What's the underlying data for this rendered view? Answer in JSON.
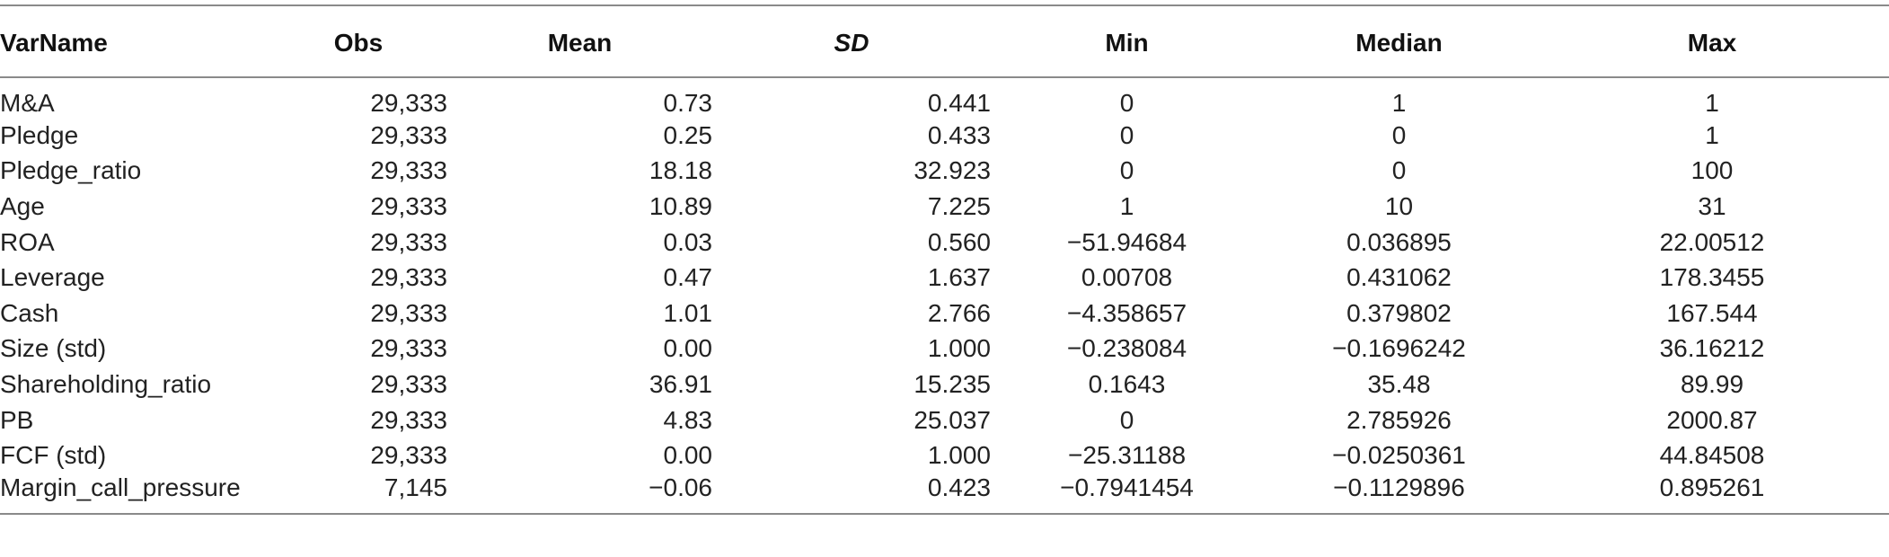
{
  "table": {
    "columns": [
      "VarName",
      "Obs",
      "Mean",
      "SD",
      "Min",
      "Median",
      "Max"
    ],
    "rows": [
      {
        "VarName": "M&A",
        "Obs": "29,333",
        "Mean": "0.73",
        "SD": "0.441",
        "Min": "0",
        "Median": "1",
        "Max": "1"
      },
      {
        "VarName": "Pledge",
        "Obs": "29,333",
        "Mean": "0.25",
        "SD": "0.433",
        "Min": "0",
        "Median": "0",
        "Max": "1"
      },
      {
        "VarName": "Pledge_ratio",
        "Obs": "29,333",
        "Mean": "18.18",
        "SD": "32.923",
        "Min": "0",
        "Median": "0",
        "Max": "100"
      },
      {
        "VarName": "Age",
        "Obs": "29,333",
        "Mean": "10.89",
        "SD": "7.225",
        "Min": "1",
        "Median": "10",
        "Max": "31"
      },
      {
        "VarName": "ROA",
        "Obs": "29,333",
        "Mean": "0.03",
        "SD": "0.560",
        "Min": "−51.94684",
        "Median": "0.036895",
        "Max": "22.00512"
      },
      {
        "VarName": "Leverage",
        "Obs": "29,333",
        "Mean": "0.47",
        "SD": "1.637",
        "Min": "0.00708",
        "Median": "0.431062",
        "Max": "178.3455"
      },
      {
        "VarName": "Cash",
        "Obs": "29,333",
        "Mean": "1.01",
        "SD": "2.766",
        "Min": "−4.358657",
        "Median": "0.379802",
        "Max": "167.544"
      },
      {
        "VarName": "Size (std)",
        "Obs": "29,333",
        "Mean": "0.00",
        "SD": "1.000",
        "Min": "−0.238084",
        "Median": "−0.1696242",
        "Max": "36.16212"
      },
      {
        "VarName": "Shareholding_ratio",
        "Obs": "29,333",
        "Mean": "36.91",
        "SD": "15.235",
        "Min": "0.1643",
        "Median": "35.48",
        "Max": "89.99"
      },
      {
        "VarName": "PB",
        "Obs": "29,333",
        "Mean": "4.83",
        "SD": "25.037",
        "Min": "0",
        "Median": "2.785926",
        "Max": "2000.87"
      },
      {
        "VarName": "FCF (std)",
        "Obs": "29,333",
        "Mean": "0.00",
        "SD": "1.000",
        "Min": "−25.31188",
        "Median": "−0.0250361",
        "Max": "44.84508"
      },
      {
        "VarName": "Margin_call_pressure",
        "Obs": "7,145",
        "Mean": "−0.06",
        "SD": "0.423",
        "Min": "−0.7941454",
        "Median": "−0.1129896",
        "Max": "0.895261"
      }
    ]
  }
}
